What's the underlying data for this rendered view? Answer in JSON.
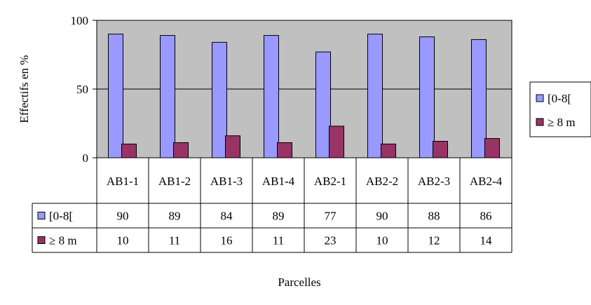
{
  "chart_data": {
    "type": "bar",
    "categories": [
      "AB1-1",
      "AB1-2",
      "AB1-3",
      "AB1-4",
      "AB2-1",
      "AB2-2",
      "AB2-3",
      "AB2-4"
    ],
    "series": [
      {
        "name": "[0-8[",
        "values": [
          90,
          89,
          84,
          89,
          77,
          90,
          88,
          86
        ],
        "color": "#9999FF"
      },
      {
        "name": "≥ 8 m",
        "values": [
          10,
          11,
          16,
          11,
          23,
          10,
          12,
          14
        ],
        "color": "#993366"
      }
    ],
    "title": "",
    "xlabel": "Parcelles",
    "ylabel": "Effectifs en %",
    "ylim": [
      0,
      100
    ],
    "yticks": [
      0,
      50,
      100
    ],
    "grid": true,
    "plot_background": "#C0C0C0",
    "legend_position": "right",
    "data_table": true
  }
}
